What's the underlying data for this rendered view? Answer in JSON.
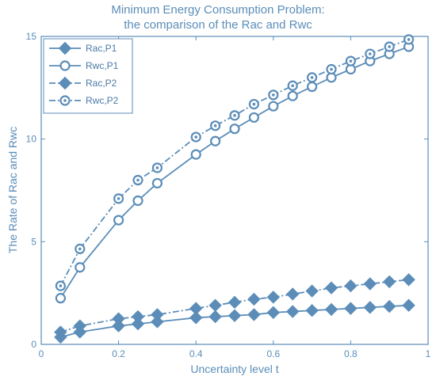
{
  "chart_data": {
    "type": "line",
    "title": [
      "Minimum Energy Consumption Problem:",
      "the comparison of the Rac and Rwc"
    ],
    "xlabel": "Uncertainty level t",
    "ylabel": "The Rate of Rac and Rwc",
    "xlim": [
      0,
      1
    ],
    "ylim": [
      0,
      15
    ],
    "xticks": [
      0,
      0.2,
      0.4,
      0.6,
      0.8,
      1
    ],
    "xtick_labels": [
      "0",
      "0.2",
      "0.4",
      "0.6",
      "0.8",
      "1"
    ],
    "yticks": [
      0,
      5,
      10,
      15
    ],
    "ytick_labels": [
      "0",
      "5",
      "10",
      "15"
    ],
    "grid": false,
    "legend_position": "top-left",
    "color": "#5b8db8",
    "x": [
      0.05,
      0.1,
      0.2,
      0.25,
      0.3,
      0.4,
      0.45,
      0.5,
      0.55,
      0.6,
      0.65,
      0.7,
      0.75,
      0.8,
      0.85,
      0.9,
      0.95
    ],
    "series": [
      {
        "name": "Rac,P1",
        "marker": "diamond",
        "line": "solid",
        "values": [
          0.35,
          0.6,
          0.9,
          1.0,
          1.1,
          1.3,
          1.35,
          1.4,
          1.45,
          1.55,
          1.6,
          1.65,
          1.7,
          1.75,
          1.8,
          1.85,
          1.9
        ]
      },
      {
        "name": "Rwc,P1",
        "marker": "circle",
        "line": "solid",
        "values": [
          2.25,
          3.75,
          6.05,
          7.0,
          7.85,
          9.25,
          9.9,
          10.5,
          11.05,
          11.6,
          12.1,
          12.55,
          13.0,
          13.4,
          13.8,
          14.15,
          14.5
        ]
      },
      {
        "name": "Rac,P2",
        "marker": "diamond",
        "line": "dashdot",
        "values": [
          0.6,
          0.9,
          1.25,
          1.35,
          1.45,
          1.75,
          1.9,
          2.05,
          2.2,
          2.3,
          2.45,
          2.6,
          2.75,
          2.85,
          2.95,
          3.05,
          3.15
        ]
      },
      {
        "name": "Rwc,P2",
        "marker": "dotcircle",
        "line": "dashdot",
        "values": [
          2.85,
          4.65,
          7.1,
          8.0,
          8.6,
          10.1,
          10.65,
          11.15,
          11.7,
          12.15,
          12.6,
          13.0,
          13.4,
          13.8,
          14.15,
          14.5,
          14.85
        ]
      }
    ]
  }
}
